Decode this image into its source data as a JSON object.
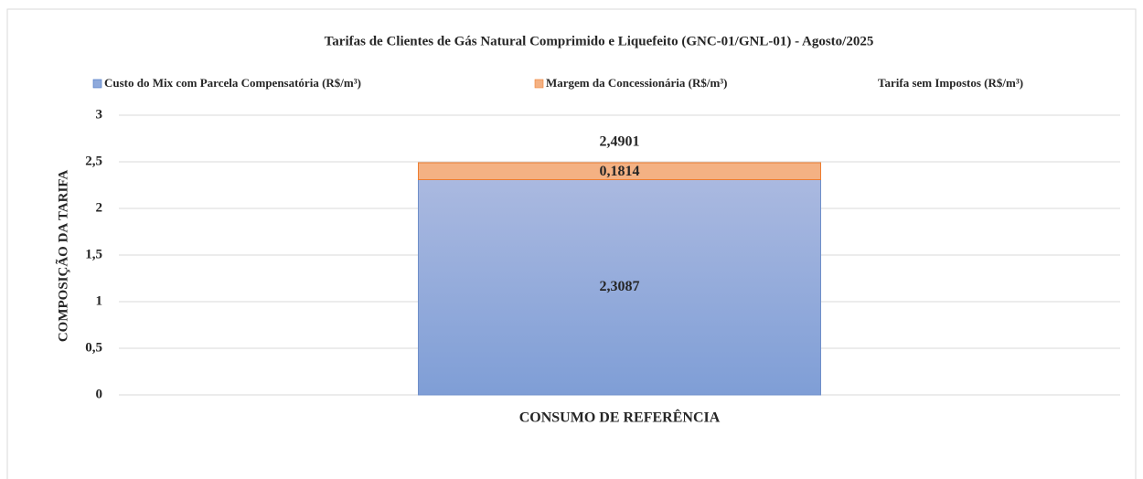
{
  "chart_data": {
    "type": "bar",
    "stacked": true,
    "title": "Tarifas de Clientes de Gás Natural Comprimido e Liquefeito (GNC-01/GNL-01) - Agosto/2025",
    "y_label": "COMPOSIÇÃO DA TARIFA",
    "categories": [
      "CONSUMO DE REFERÊNCIA"
    ],
    "series": [
      {
        "name": "Custo do Mix com Parcela Compensatória (R$/m³)",
        "color": "#8faadc",
        "values": [
          2.3087
        ],
        "value_labels": [
          "2,3087"
        ]
      },
      {
        "name": "Margem da Concessionária (R$/m³)",
        "color": "#f4b183",
        "values": [
          0.1814
        ],
        "value_labels": [
          "0,1814"
        ]
      },
      {
        "name": "Tarifa sem Impostos (R$/m³)",
        "type": "line",
        "values": [
          2.4901
        ],
        "value_labels": [
          "2,4901"
        ]
      }
    ],
    "ylim": [
      0,
      3
    ],
    "yticks": [
      0,
      {
        "value": 0.5,
        "label": "0,5"
      },
      1,
      {
        "value": 1.5,
        "label": "1,5"
      },
      2,
      {
        "value": 2.5,
        "label": "2,5"
      },
      3
    ],
    "grid": true,
    "legend": "top"
  }
}
